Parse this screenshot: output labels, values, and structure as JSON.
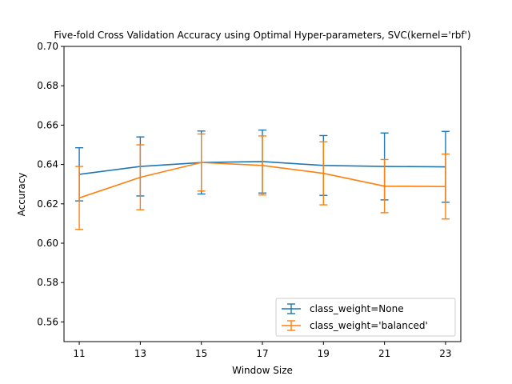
{
  "chart_data": {
    "type": "line",
    "title": "Five-fold Cross Validation Accuracy using Optimal Hyper-parameters, SVC(kernel='rbf')",
    "xlabel": "Window Size",
    "ylabel": "Accuracy",
    "x": [
      11,
      13,
      15,
      17,
      19,
      21,
      23
    ],
    "xlim": [
      10.5,
      23.5
    ],
    "ylim": [
      0.55,
      0.7
    ],
    "xticks": [
      "11",
      "13",
      "15",
      "17",
      "19",
      "21",
      "23"
    ],
    "yticks": [
      "0.56",
      "0.58",
      "0.60",
      "0.62",
      "0.64",
      "0.66",
      "0.68",
      "0.70"
    ],
    "grid": false,
    "legend_position": "lower right",
    "series": [
      {
        "name": "class_weight=None",
        "color": "#1f77b4",
        "values": [
          0.635,
          0.639,
          0.641,
          0.6415,
          0.6395,
          0.639,
          0.6388
        ],
        "errors": [
          0.0135,
          0.015,
          0.016,
          0.016,
          0.0152,
          0.017,
          0.018
        ]
      },
      {
        "name": "class_weight='balanced'",
        "color": "#ff7f0e",
        "values": [
          0.623,
          0.6335,
          0.641,
          0.6395,
          0.6355,
          0.629,
          0.6288
        ],
        "errors": [
          0.016,
          0.0165,
          0.0145,
          0.015,
          0.016,
          0.0135,
          0.0165
        ]
      }
    ]
  }
}
